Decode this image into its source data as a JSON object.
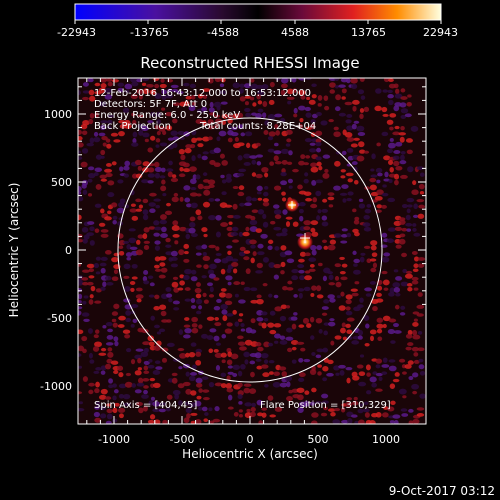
{
  "colorbar": {
    "ticks": [
      "-22943",
      "-13765",
      "-4588",
      "4588",
      "13765",
      "22943"
    ]
  },
  "plot": {
    "title": "Reconstructed RHESSI Image",
    "xlabel": "Heliocentric X (arcsec)",
    "ylabel": "Heliocentric Y (arcsec)",
    "x_ticks": [
      "-1000",
      "-500",
      "0",
      "500",
      "1000"
    ],
    "y_ticks": [
      "1000",
      "500",
      "0",
      "-500",
      "-1000"
    ],
    "info": {
      "line1": "12-Feb-2016 16:43:12.000 to 16:53:12.000",
      "line2": "Detectors: 5F 7F, Att 0",
      "line3": "Energy Range: 6.0 - 25.0 keV",
      "line4_left": "Back Projection",
      "line4_right": "Total counts: 8.28E+04"
    },
    "spin_axis": "Spin Axis = [404,45]",
    "flare_position": "Flare Position = [310,329]"
  },
  "footer": {
    "date": "9-Oct-2017 03:12"
  },
  "chart_data": {
    "type": "heatmap",
    "title": "Reconstructed RHESSI Image",
    "xlabel": "Heliocentric X (arcsec)",
    "ylabel": "Heliocentric Y (arcsec)",
    "xlim": [
      -1280,
      1280
    ],
    "ylim": [
      -1280,
      1280
    ],
    "colorbar_range": [
      -22943,
      22943
    ],
    "solar_disk_radius": 975,
    "sources": [
      {
        "x": 310,
        "y": 329
      },
      {
        "x": 404,
        "y": 45
      }
    ]
  }
}
